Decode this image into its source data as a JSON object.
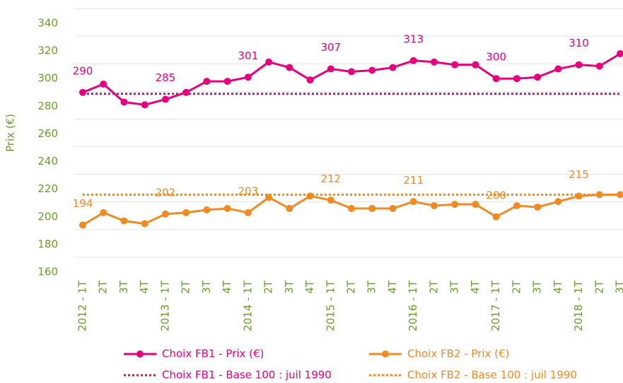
{
  "chart_data": {
    "type": "line",
    "y_label": "Prix (€)",
    "categories": [
      "2012 - 1T",
      "2T",
      "3T",
      "4T",
      "2013 - 1T",
      "2T",
      "3T",
      "4T",
      "2014 - 1T",
      "2T",
      "3T",
      "4T",
      "2015 - 1T",
      "2T",
      "3T",
      "4T",
      "2016 - 1T",
      "2T",
      "3T",
      "4T",
      "2017 - 1T",
      "2T",
      "3T",
      "4T",
      "2018 - 1T",
      "2T",
      "3T"
    ],
    "ylim": [
      160,
      340
    ],
    "yticks": [
      160,
      180,
      200,
      220,
      240,
      260,
      280,
      300,
      320,
      340
    ],
    "grid": true,
    "series": [
      {
        "name": "Choix FB1 - Prix (€)",
        "color": "#e6007e",
        "style": "solid",
        "marker": true,
        "values": [
          290,
          296,
          283,
          281,
          285,
          290,
          298,
          298,
          301,
          312,
          308,
          299,
          307,
          305,
          306,
          308,
          313,
          312,
          310,
          310,
          300,
          300,
          301,
          307,
          310,
          309,
          318
        ],
        "value_labels": [
          "290",
          null,
          null,
          null,
          "285",
          null,
          null,
          null,
          "301",
          null,
          null,
          null,
          "307",
          null,
          null,
          null,
          "313",
          null,
          null,
          null,
          "300",
          null,
          null,
          null,
          "310",
          null,
          null
        ]
      },
      {
        "name": "Choix FB2 - Prix (€)",
        "color": "#f08a24",
        "style": "solid",
        "marker": true,
        "values": [
          194,
          203,
          197,
          195,
          202,
          203,
          205,
          206,
          203,
          214,
          206,
          215,
          212,
          206,
          206,
          206,
          211,
          208,
          209,
          209,
          200,
          208,
          207,
          211,
          215,
          216,
          216
        ],
        "value_labels": [
          "194",
          null,
          null,
          null,
          "202",
          null,
          null,
          null,
          "203",
          null,
          null,
          null,
          "212",
          null,
          null,
          null,
          "211",
          null,
          null,
          null,
          "200",
          null,
          null,
          null,
          "215",
          null,
          null
        ]
      },
      {
        "name": "Choix FB1 - Base 100 : juil 1990",
        "color": "#e6007e",
        "style": "dotted",
        "marker": false,
        "values": [
          289,
          289,
          289,
          289,
          289,
          289,
          289,
          289,
          289,
          289,
          289,
          289,
          289,
          289,
          289,
          289,
          289,
          289,
          289,
          289,
          289,
          289,
          289,
          289,
          289,
          289,
          289
        ]
      },
      {
        "name": "Choix FB2 - Base 100 : juil 1990",
        "color": "#f08a24",
        "style": "dotted",
        "marker": false,
        "values": [
          216,
          216,
          216,
          216,
          216,
          216,
          216,
          216,
          216,
          216,
          216,
          216,
          216,
          216,
          216,
          216,
          216,
          216,
          216,
          216,
          216,
          216,
          216,
          216,
          216,
          216,
          216
        ]
      }
    ]
  }
}
